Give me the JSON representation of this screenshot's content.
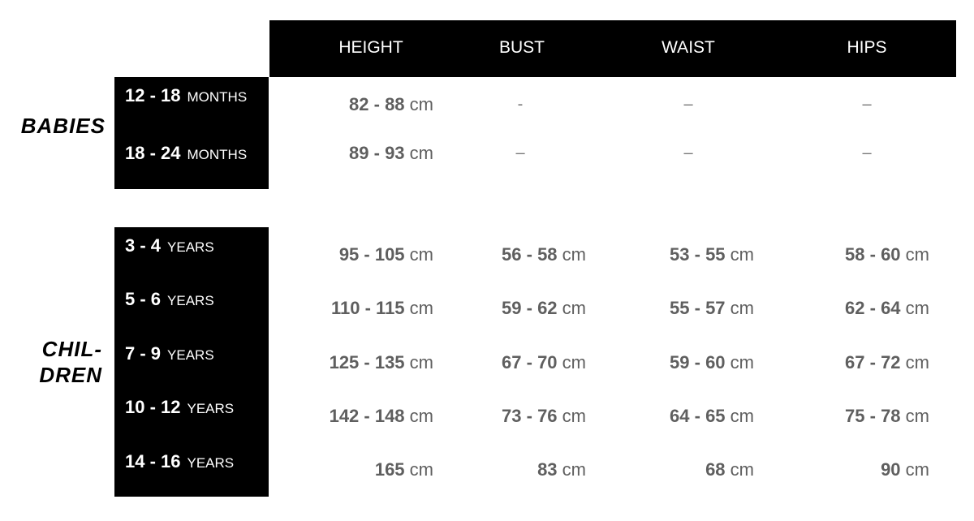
{
  "columns": [
    "HEIGHT",
    "BUST",
    "WAIST",
    "HIPS"
  ],
  "groups": [
    {
      "label": "BABIES",
      "label_lines": [
        "BABIES"
      ],
      "rows": [
        {
          "range": "12 - 18",
          "unit": "MONTHS",
          "values": [
            {
              "num": "82 - 88",
              "unit": "cm"
            },
            {
              "num": "-"
            },
            {
              "num": "–"
            },
            {
              "num": "–"
            }
          ]
        },
        {
          "range": "18 - 24",
          "unit": "MONTHS",
          "values": [
            {
              "num": "89 - 93",
              "unit": "cm"
            },
            {
              "num": "–"
            },
            {
              "num": "–"
            },
            {
              "num": "–"
            }
          ]
        }
      ]
    },
    {
      "label": "CHILDREN",
      "label_lines": [
        "CHIL-",
        "DREN"
      ],
      "rows": [
        {
          "range": "3 - 4",
          "unit": "YEARS",
          "values": [
            {
              "num": "95 - 105",
              "unit": "cm"
            },
            {
              "num": "56 - 58",
              "unit": "cm"
            },
            {
              "num": "53 - 55",
              "unit": "cm"
            },
            {
              "num": "58 - 60",
              "unit": "cm"
            }
          ]
        },
        {
          "range": "5 - 6",
          "unit": "YEARS",
          "values": [
            {
              "num": "110 - 115",
              "unit": "cm"
            },
            {
              "num": "59 - 62",
              "unit": "cm"
            },
            {
              "num": "55 - 57",
              "unit": "cm"
            },
            {
              "num": "62 - 64",
              "unit": "cm"
            }
          ]
        },
        {
          "range": "7 - 9",
          "unit": "YEARS",
          "values": [
            {
              "num": "125 - 135",
              "unit": "cm"
            },
            {
              "num": "67 - 70",
              "unit": "cm"
            },
            {
              "num": "59 - 60",
              "unit": "cm"
            },
            {
              "num": "67 - 72",
              "unit": "cm"
            }
          ]
        },
        {
          "range": "10 - 12",
          "unit": "YEARS",
          "values": [
            {
              "num": "142 - 148",
              "unit": "cm"
            },
            {
              "num": "73 - 76",
              "unit": "cm"
            },
            {
              "num": "64 - 65",
              "unit": "cm"
            },
            {
              "num": "75 - 78",
              "unit": "cm"
            }
          ]
        },
        {
          "range": "14 - 16",
          "unit": "YEARS",
          "values": [
            {
              "num": "165",
              "unit": "cm"
            },
            {
              "num": "83",
              "unit": "cm"
            },
            {
              "num": "68",
              "unit": "cm"
            },
            {
              "num": "90",
              "unit": "cm"
            }
          ]
        }
      ]
    }
  ]
}
